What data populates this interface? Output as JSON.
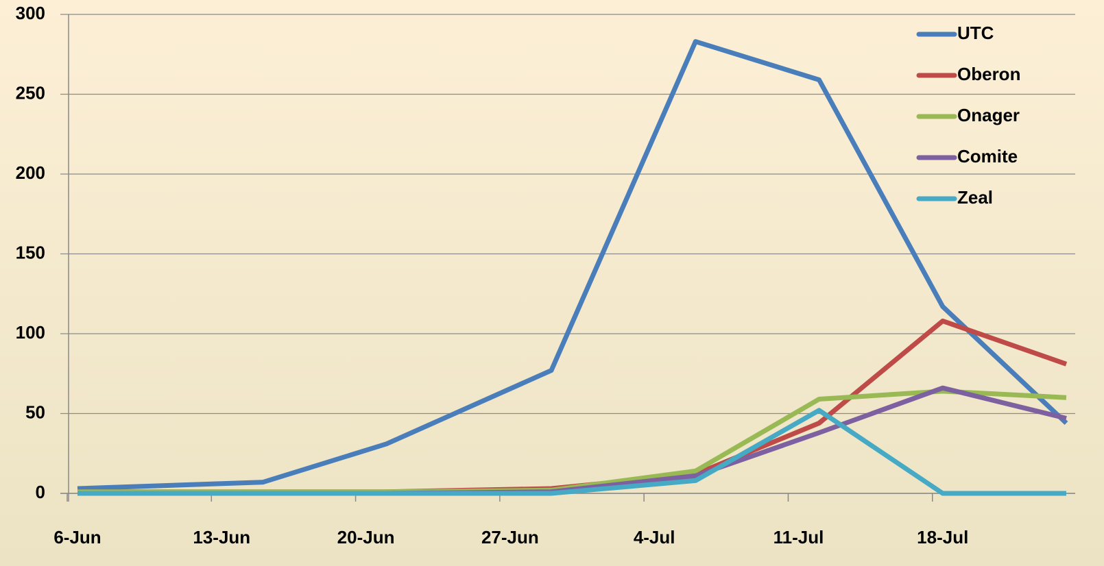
{
  "chart_data": {
    "type": "line",
    "x": [
      "6-Jun",
      "15-Jun",
      "21-Jun",
      "29-Jun",
      "6-Jul",
      "12-Jul",
      "18-Jul",
      "24-Jul"
    ],
    "series": [
      {
        "name": "UTC",
        "color": "#4a7ebb",
        "values": [
          3,
          7,
          31,
          77,
          283,
          259,
          117,
          44
        ]
      },
      {
        "name": "Oberon",
        "color": "#be4b48",
        "values": [
          1,
          1,
          1,
          3,
          12,
          44,
          108,
          81
        ]
      },
      {
        "name": "Onager",
        "color": "#98b954",
        "values": [
          1,
          1,
          1,
          2,
          14,
          59,
          64,
          60
        ]
      },
      {
        "name": "Comite",
        "color": "#7d60a0",
        "values": [
          0,
          0,
          0,
          1,
          11,
          38,
          66,
          47
        ]
      },
      {
        "name": "Zeal",
        "color": "#46aac5",
        "values": [
          0,
          0,
          0,
          0,
          8,
          52,
          0,
          0
        ]
      }
    ],
    "xlim": [
      "6-Jun",
      "24-Jul"
    ],
    "xticks": [
      "6-Jun",
      "13-Jun",
      "20-Jun",
      "27-Jun",
      "4-Jul",
      "11-Jul",
      "18-Jul"
    ],
    "ylim": [
      0,
      300
    ],
    "yticks": [
      0,
      50,
      100,
      150,
      200,
      250,
      300
    ],
    "grid": true,
    "legend": "top-right"
  }
}
